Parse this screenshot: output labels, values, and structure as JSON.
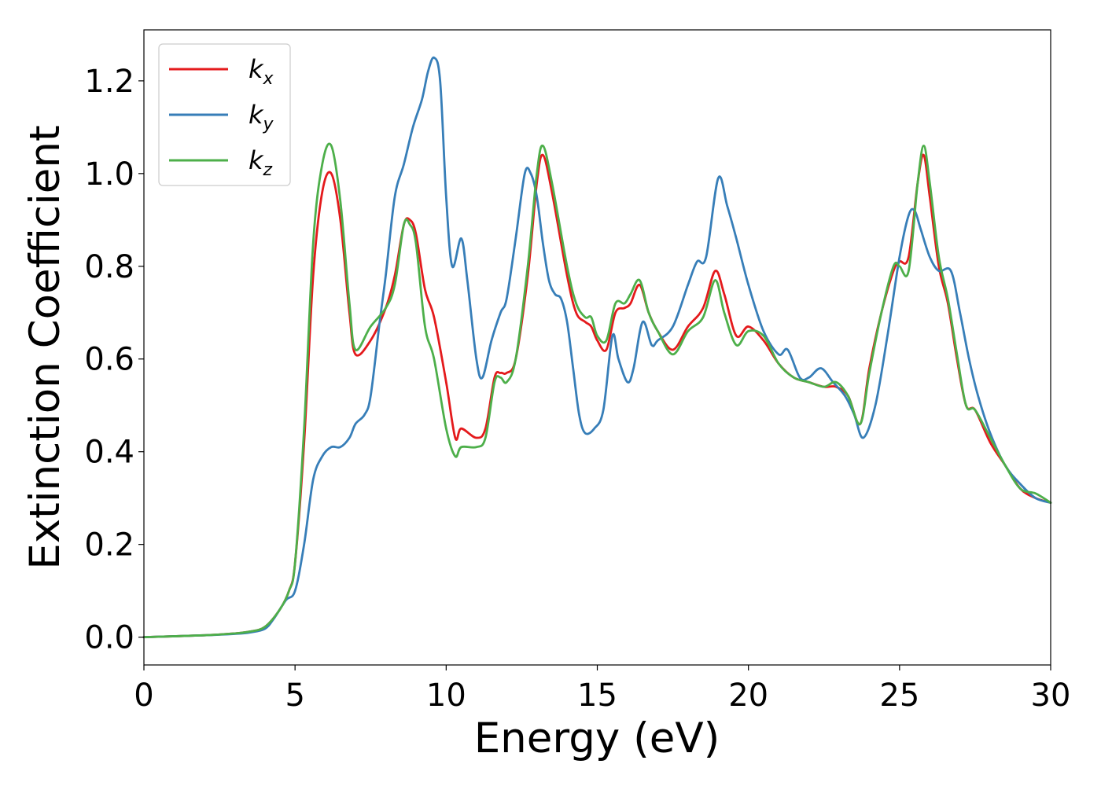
{
  "chart_data": {
    "type": "line",
    "xlabel": "Energy (eV)",
    "ylabel": "Extinction Coefficient",
    "xlim": [
      0,
      30
    ],
    "ylim": [
      -0.06,
      1.31
    ],
    "xticks": [
      0,
      5,
      10,
      15,
      20,
      25,
      30
    ],
    "xtick_labels": [
      "0",
      "5",
      "10",
      "15",
      "20",
      "25",
      "30"
    ],
    "yticks": [
      0.0,
      0.2,
      0.4,
      0.6,
      0.8,
      1.0,
      1.2
    ],
    "ytick_labels": [
      "0.0",
      "0.2",
      "0.4",
      "0.6",
      "0.8",
      "1.0",
      "1.2"
    ],
    "grid": false,
    "legend_position": "top-left",
    "series": [
      {
        "name": "k_x",
        "label_main": "k",
        "label_sub": "x",
        "color": "#e41a1c",
        "x": [
          0,
          2,
          3,
          3.5,
          4,
          4.5,
          4.8,
          5,
          5.3,
          5.6,
          5.9,
          6.2,
          6.5,
          6.8,
          7,
          7.5,
          8,
          8.3,
          8.6,
          8.8,
          9,
          9.3,
          9.6,
          10,
          10.3,
          10.5,
          11,
          11.3,
          11.6,
          11.8,
          12,
          12.3,
          12.7,
          13,
          13.2,
          13.5,
          14,
          14.3,
          14.6,
          14.8,
          15,
          15.3,
          15.6,
          15.9,
          16.1,
          16.4,
          16.7,
          17,
          17.5,
          18,
          18.5,
          18.9,
          19.2,
          19.6,
          20,
          20.5,
          21,
          21.5,
          22,
          22.5,
          22.9,
          23.3,
          23.7,
          24,
          24.4,
          24.8,
          25,
          25.3,
          25.6,
          25.8,
          26,
          26.3,
          26.6,
          26.9,
          27.2,
          27.5,
          28,
          28.5,
          29,
          29.5,
          30
        ],
        "y": [
          0,
          0.004,
          0.008,
          0.012,
          0.022,
          0.06,
          0.1,
          0.16,
          0.42,
          0.78,
          0.96,
          1.0,
          0.9,
          0.7,
          0.61,
          0.64,
          0.71,
          0.78,
          0.89,
          0.9,
          0.87,
          0.75,
          0.69,
          0.55,
          0.43,
          0.45,
          0.43,
          0.45,
          0.56,
          0.57,
          0.57,
          0.6,
          0.78,
          0.98,
          1.04,
          0.96,
          0.78,
          0.7,
          0.68,
          0.67,
          0.64,
          0.62,
          0.7,
          0.71,
          0.72,
          0.76,
          0.7,
          0.66,
          0.62,
          0.67,
          0.71,
          0.79,
          0.74,
          0.65,
          0.67,
          0.64,
          0.59,
          0.56,
          0.55,
          0.54,
          0.54,
          0.52,
          0.46,
          0.58,
          0.7,
          0.79,
          0.81,
          0.82,
          0.98,
          1.04,
          0.95,
          0.8,
          0.72,
          0.6,
          0.5,
          0.49,
          0.42,
          0.37,
          0.32,
          0.3,
          0.29
        ]
      },
      {
        "name": "k_y",
        "label_main": "k",
        "label_sub": "y",
        "color": "#377eb8",
        "x": [
          0,
          2,
          3,
          3.5,
          4,
          4.3,
          4.7,
          5,
          5.3,
          5.6,
          5.9,
          6.2,
          6.5,
          6.8,
          7,
          7.3,
          7.5,
          7.8,
          8,
          8.3,
          8.6,
          8.9,
          9.2,
          9.4,
          9.6,
          9.8,
          10,
          10.2,
          10.5,
          10.7,
          11,
          11.2,
          11.5,
          11.8,
          12,
          12.3,
          12.6,
          12.8,
          13,
          13.2,
          13.4,
          13.6,
          13.8,
          14,
          14.2,
          14.4,
          14.6,
          14.9,
          15.2,
          15.5,
          15.7,
          16,
          16.2,
          16.5,
          16.8,
          17,
          17.5,
          18,
          18.3,
          18.6,
          19,
          19.3,
          19.6,
          20,
          20.5,
          21,
          21.3,
          21.7,
          22,
          22.4,
          22.8,
          23.2,
          23.5,
          23.8,
          24.2,
          24.6,
          25,
          25.3,
          25.5,
          25.7,
          26,
          26.3,
          26.7,
          27,
          27.3,
          27.6,
          28,
          28.5,
          29,
          29.5,
          30
        ],
        "y": [
          0,
          0.004,
          0.007,
          0.01,
          0.018,
          0.04,
          0.08,
          0.1,
          0.2,
          0.34,
          0.39,
          0.41,
          0.41,
          0.43,
          0.46,
          0.48,
          0.52,
          0.68,
          0.78,
          0.95,
          1.02,
          1.1,
          1.16,
          1.22,
          1.25,
          1.2,
          0.95,
          0.8,
          0.86,
          0.77,
          0.6,
          0.56,
          0.64,
          0.7,
          0.73,
          0.86,
          1.0,
          1.0,
          0.95,
          0.85,
          0.77,
          0.74,
          0.73,
          0.68,
          0.58,
          0.48,
          0.44,
          0.45,
          0.49,
          0.65,
          0.6,
          0.55,
          0.58,
          0.68,
          0.63,
          0.64,
          0.67,
          0.76,
          0.81,
          0.82,
          0.99,
          0.93,
          0.86,
          0.76,
          0.66,
          0.61,
          0.62,
          0.56,
          0.56,
          0.58,
          0.55,
          0.52,
          0.48,
          0.43,
          0.5,
          0.65,
          0.82,
          0.91,
          0.92,
          0.88,
          0.82,
          0.79,
          0.79,
          0.7,
          0.6,
          0.52,
          0.44,
          0.37,
          0.33,
          0.3,
          0.29
        ]
      },
      {
        "name": "k_z",
        "label_main": "k",
        "label_sub": "z",
        "color": "#4daf4a",
        "x": [
          0,
          2,
          3,
          3.5,
          4,
          4.5,
          4.8,
          5,
          5.3,
          5.6,
          5.9,
          6.2,
          6.5,
          6.8,
          7,
          7.5,
          8,
          8.3,
          8.6,
          8.8,
          9,
          9.3,
          9.6,
          10,
          10.3,
          10.5,
          11,
          11.3,
          11.6,
          11.8,
          12,
          12.3,
          12.7,
          13,
          13.2,
          13.5,
          14,
          14.3,
          14.6,
          14.8,
          15,
          15.3,
          15.6,
          15.9,
          16.1,
          16.4,
          16.7,
          17,
          17.5,
          18,
          18.5,
          18.9,
          19.2,
          19.6,
          20,
          20.5,
          21,
          21.5,
          22,
          22.5,
          22.9,
          23.3,
          23.7,
          24,
          24.4,
          24.8,
          25,
          25.3,
          25.6,
          25.8,
          26,
          26.3,
          26.6,
          26.9,
          27.2,
          27.5,
          28,
          28.5,
          29,
          29.5,
          30
        ],
        "y": [
          0,
          0.004,
          0.008,
          0.012,
          0.022,
          0.06,
          0.1,
          0.16,
          0.45,
          0.85,
          1.02,
          1.06,
          0.94,
          0.72,
          0.62,
          0.67,
          0.71,
          0.76,
          0.89,
          0.89,
          0.85,
          0.67,
          0.6,
          0.45,
          0.39,
          0.41,
          0.41,
          0.43,
          0.55,
          0.56,
          0.55,
          0.6,
          0.8,
          1.0,
          1.06,
          0.98,
          0.8,
          0.72,
          0.69,
          0.69,
          0.65,
          0.64,
          0.72,
          0.72,
          0.74,
          0.77,
          0.7,
          0.66,
          0.61,
          0.66,
          0.69,
          0.77,
          0.7,
          0.63,
          0.66,
          0.65,
          0.59,
          0.56,
          0.55,
          0.54,
          0.55,
          0.52,
          0.46,
          0.57,
          0.7,
          0.8,
          0.8,
          0.79,
          0.98,
          1.06,
          0.98,
          0.82,
          0.73,
          0.61,
          0.5,
          0.49,
          0.43,
          0.37,
          0.32,
          0.31,
          0.29
        ]
      }
    ]
  }
}
